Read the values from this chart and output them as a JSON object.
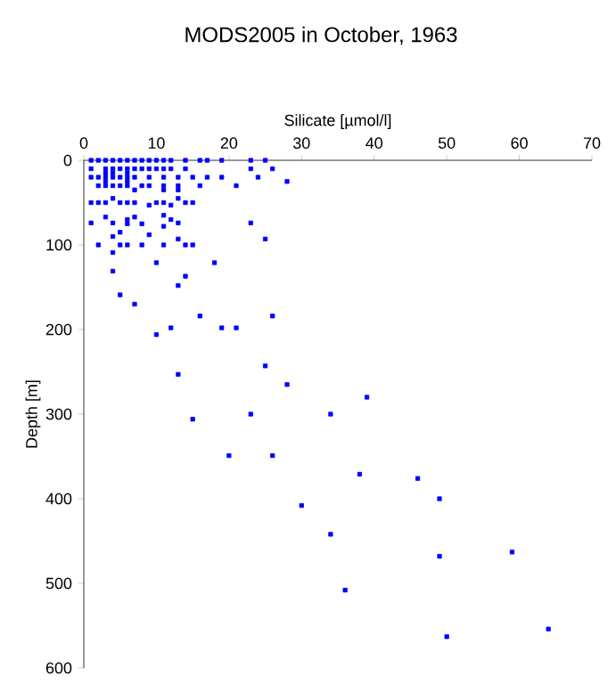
{
  "chart_data": {
    "type": "scatter",
    "title": "MODS2005 in October, 1963",
    "xlabel": "Silicate [µmol/l]",
    "ylabel": "Depth [m]",
    "xlim": [
      0,
      70
    ],
    "xticks": [
      0,
      10,
      20,
      30,
      40,
      50,
      60,
      70
    ],
    "ylim": [
      600,
      0
    ],
    "yticks": [
      0,
      100,
      200,
      300,
      400,
      500,
      600
    ],
    "grid": false,
    "marker": "square",
    "series": [
      {
        "color": "#0000ff",
        "x": [
          1,
          2,
          3,
          4,
          5,
          6,
          7,
          8,
          9,
          10,
          11,
          12,
          14,
          16,
          17,
          19,
          23,
          25,
          1,
          3,
          4,
          5,
          6,
          7,
          8,
          9,
          10,
          11,
          12,
          14,
          23,
          26,
          3,
          4,
          6,
          1,
          2,
          3,
          4,
          5,
          6,
          7,
          9,
          11,
          13,
          15,
          17,
          19,
          24,
          3,
          6,
          28,
          2,
          3,
          4,
          5,
          6,
          8,
          9,
          11,
          13,
          16,
          21,
          7,
          11,
          13,
          4,
          13,
          1,
          2,
          3,
          5,
          6,
          7,
          10,
          11,
          14,
          15,
          9,
          12,
          11,
          3,
          7,
          6,
          12,
          1,
          4,
          13,
          23,
          6,
          8,
          11,
          5,
          9,
          4,
          13,
          25,
          2,
          5,
          6,
          8,
          11,
          14,
          15,
          4,
          10,
          18,
          4,
          14,
          13,
          5,
          7,
          16,
          26,
          12,
          19,
          21,
          10,
          25,
          13,
          28,
          39,
          15,
          23,
          34,
          20,
          26,
          38,
          46,
          30,
          49,
          34,
          49,
          59,
          36,
          50,
          64
        ],
        "values": [
          0,
          0,
          0,
          0,
          0,
          0,
          0,
          0,
          0,
          0,
          0,
          0,
          0,
          0,
          0,
          0,
          0,
          0,
          10,
          10,
          10,
          10,
          10,
          10,
          10,
          10,
          10,
          10,
          10,
          10,
          10,
          10,
          15,
          15,
          15,
          20,
          20,
          20,
          20,
          20,
          20,
          20,
          20,
          20,
          20,
          20,
          20,
          20,
          20,
          25,
          25,
          25,
          30,
          30,
          30,
          30,
          30,
          30,
          30,
          30,
          30,
          30,
          30,
          35,
          35,
          35,
          45,
          45,
          50,
          50,
          50,
          50,
          50,
          50,
          50,
          50,
          50,
          50,
          53,
          53,
          65,
          67,
          67,
          70,
          70,
          74,
          74,
          74,
          74,
          75,
          75,
          78,
          85,
          88,
          90,
          93,
          93,
          100,
          100,
          100,
          100,
          100,
          100,
          100,
          109,
          121,
          121,
          131,
          137,
          148,
          159,
          170,
          184,
          184,
          198,
          198,
          198,
          206,
          243,
          253,
          265,
          280,
          306,
          300,
          300,
          349,
          349,
          371,
          376,
          408,
          400,
          442,
          468,
          463,
          508,
          563,
          554
        ]
      }
    ]
  }
}
